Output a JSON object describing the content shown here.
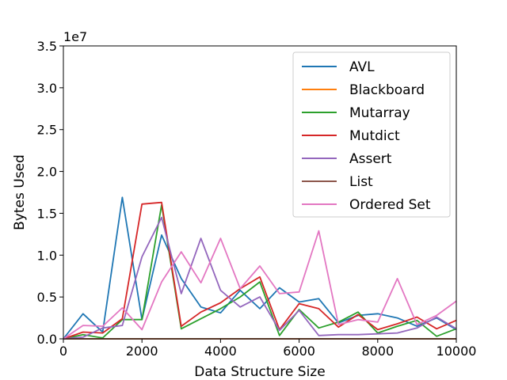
{
  "chart_data": {
    "type": "line",
    "xlabel": "Data Structure Size",
    "ylabel": "Bytes Used",
    "y_offset_label": "1e7",
    "xlim": [
      0,
      10000
    ],
    "ylim": [
      0,
      35000000
    ],
    "x_ticks": [
      0,
      2000,
      4000,
      6000,
      8000,
      10000
    ],
    "x_tick_labels": [
      "0",
      "2000",
      "4000",
      "6000",
      "8000",
      "10000"
    ],
    "y_ticks": [
      0,
      5000000,
      10000000,
      15000000,
      20000000,
      25000000,
      30000000,
      35000000
    ],
    "y_tick_labels": [
      "0.0",
      "0.5",
      "1.0",
      "1.5",
      "2.0",
      "2.5",
      "3.0",
      "3.5"
    ],
    "legend_position": "upper right",
    "grid": false,
    "x": [
      0,
      500,
      1000,
      1500,
      2000,
      2500,
      3000,
      3500,
      4000,
      4500,
      5000,
      5500,
      6000,
      6500,
      7000,
      7500,
      8000,
      8500,
      9000,
      9500,
      10000
    ],
    "series": [
      {
        "name": "AVL",
        "color": "#1f77b4",
        "values": [
          0,
          3000000,
          800000,
          16900000,
          2300000,
          12400000,
          7200000,
          3800000,
          3100000,
          5800000,
          3600000,
          6100000,
          4400000,
          4800000,
          1900000,
          2800000,
          3000000,
          2500000,
          1500000,
          2500000,
          1100000
        ]
      },
      {
        "name": "Blackboard",
        "color": "#ff7f0e",
        "values": [
          0,
          0,
          0,
          0,
          0,
          0,
          0,
          0,
          0,
          0,
          0,
          0,
          0,
          0,
          0,
          0,
          0,
          0,
          0,
          0,
          0
        ]
      },
      {
        "name": "Mutarray",
        "color": "#2ca02c",
        "values": [
          0,
          500000,
          100000,
          2300000,
          2300000,
          16000000,
          1200000,
          2400000,
          3600000,
          5000000,
          6800000,
          400000,
          3500000,
          1300000,
          2000000,
          3200000,
          700000,
          1500000,
          2200000,
          300000,
          1200000
        ]
      },
      {
        "name": "Mutdict",
        "color": "#d62728",
        "values": [
          0,
          800000,
          700000,
          2400000,
          16100000,
          16300000,
          1500000,
          3200000,
          4300000,
          6000000,
          7400000,
          1100000,
          4200000,
          3600000,
          1400000,
          2900000,
          1100000,
          1800000,
          2600000,
          1200000,
          2200000
        ]
      },
      {
        "name": "Assert",
        "color": "#9467bd",
        "values": [
          0,
          200000,
          1300000,
          1600000,
          9800000,
          14500000,
          5400000,
          12000000,
          5800000,
          3800000,
          5000000,
          1000000,
          3400000,
          400000,
          500000,
          500000,
          600000,
          700000,
          1300000,
          2600000,
          1200000
        ]
      },
      {
        "name": "List",
        "color": "#8c564b",
        "values": [
          0,
          0,
          0,
          0,
          0,
          0,
          0,
          0,
          0,
          0,
          0,
          0,
          0,
          0,
          0,
          0,
          0,
          0,
          0,
          0,
          0
        ]
      },
      {
        "name": "Ordered Set",
        "color": "#e377c2",
        "values": [
          0,
          1600000,
          1500000,
          3700000,
          1100000,
          6800000,
          10400000,
          6700000,
          12000000,
          6000000,
          8700000,
          5400000,
          5600000,
          12900000,
          1700000,
          2300000,
          2000000,
          7200000,
          1700000,
          2800000,
          4500000
        ]
      }
    ]
  }
}
